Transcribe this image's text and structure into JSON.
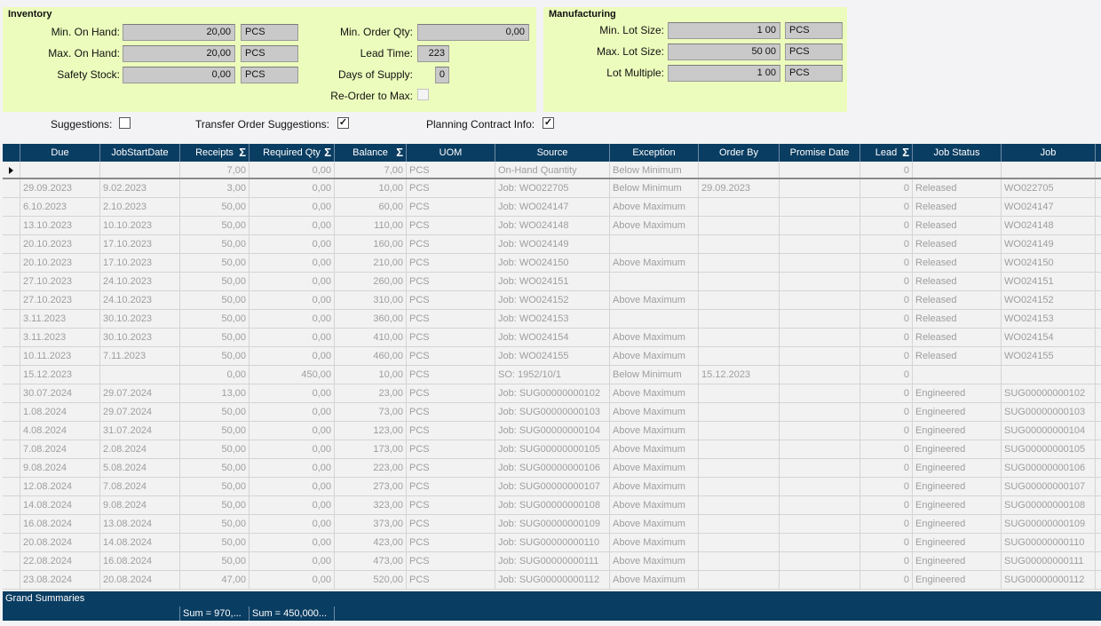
{
  "inventory": {
    "title": "Inventory",
    "min_on_hand": {
      "label": "Min. On Hand:",
      "value": "20,00",
      "uom": "PCS"
    },
    "max_on_hand": {
      "label": "Max. On Hand:",
      "value": "20,00",
      "uom": "PCS"
    },
    "safety_stock": {
      "label": "Safety Stock:",
      "value": "0,00",
      "uom": "PCS"
    },
    "min_order_qty": {
      "label": "Min. Order Qty:",
      "value": "0,00"
    },
    "lead_time": {
      "label": "Lead Time:",
      "value": "223"
    },
    "days_of_supply": {
      "label": "Days of Supply:",
      "value": "0"
    },
    "reorder_to_max": {
      "label": "Re-Order to Max:",
      "checked": false
    }
  },
  "manufacturing": {
    "title": "Manufacturing",
    "min_lot_size": {
      "label": "Min. Lot Size:",
      "value": "1 00",
      "uom": "PCS"
    },
    "max_lot_size": {
      "label": "Max. Lot Size:",
      "value": "50 00",
      "uom": "PCS"
    },
    "lot_multiple": {
      "label": "Lot Multiple:",
      "value": "1 00",
      "uom": "PCS"
    }
  },
  "options": {
    "suggestions": {
      "label": "Suggestions:",
      "checked": false,
      "mark": ""
    },
    "transfer_order": {
      "label": "Transfer Order Suggestions:",
      "checked": true,
      "mark": "✓"
    },
    "planning_contract": {
      "label": "Planning Contract Info:",
      "checked": true,
      "mark": "✓"
    }
  },
  "grid": {
    "columns": [
      "Due",
      "JobStartDate",
      "Receipts",
      "Required Qty",
      "Balance",
      "UOM",
      "Source",
      "Exception",
      "Order By",
      "Promise Date",
      "Lead",
      "Job Status",
      "Job"
    ],
    "rows": [
      [
        "",
        "",
        "7,00",
        "0,00",
        "7,00",
        "PCS",
        "On-Hand Quantity",
        "Below Minimum",
        "",
        "",
        "0",
        "",
        ""
      ],
      [
        "29.09.2023",
        "9.02.2023",
        "3,00",
        "0,00",
        "10,00",
        "PCS",
        "Job: WO022705",
        "Below Minimum",
        "29.09.2023",
        "",
        "0",
        "Released",
        "WO022705"
      ],
      [
        "6.10.2023",
        "2.10.2023",
        "50,00",
        "0,00",
        "60,00",
        "PCS",
        "Job: WO024147",
        "Above Maximum",
        "",
        "",
        "0",
        "Released",
        "WO024147"
      ],
      [
        "13.10.2023",
        "10.10.2023",
        "50,00",
        "0,00",
        "110,00",
        "PCS",
        "Job: WO024148",
        "Above Maximum",
        "",
        "",
        "0",
        "Released",
        "WO024148"
      ],
      [
        "20.10.2023",
        "17.10.2023",
        "50,00",
        "0,00",
        "160,00",
        "PCS",
        "Job: WO024149",
        "",
        "",
        "",
        "0",
        "Released",
        "WO024149"
      ],
      [
        "20.10.2023",
        "17.10.2023",
        "50,00",
        "0,00",
        "210,00",
        "PCS",
        "Job: WO024150",
        "Above Maximum",
        "",
        "",
        "0",
        "Released",
        "WO024150"
      ],
      [
        "27.10.2023",
        "24.10.2023",
        "50,00",
        "0,00",
        "260,00",
        "PCS",
        "Job: WO024151",
        "",
        "",
        "",
        "0",
        "Released",
        "WO024151"
      ],
      [
        "27.10.2023",
        "24.10.2023",
        "50,00",
        "0,00",
        "310,00",
        "PCS",
        "Job: WO024152",
        "Above Maximum",
        "",
        "",
        "0",
        "Released",
        "WO024152"
      ],
      [
        "3.11.2023",
        "30.10.2023",
        "50,00",
        "0,00",
        "360,00",
        "PCS",
        "Job: WO024153",
        "",
        "",
        "",
        "0",
        "Released",
        "WO024153"
      ],
      [
        "3.11.2023",
        "30.10.2023",
        "50,00",
        "0,00",
        "410,00",
        "PCS",
        "Job: WO024154",
        "Above Maximum",
        "",
        "",
        "0",
        "Released",
        "WO024154"
      ],
      [
        "10.11.2023",
        "7.11.2023",
        "50,00",
        "0,00",
        "460,00",
        "PCS",
        "Job: WO024155",
        "Above Maximum",
        "",
        "",
        "0",
        "Released",
        "WO024155"
      ],
      [
        "15.12.2023",
        "",
        "0,00",
        "450,00",
        "10,00",
        "PCS",
        "SO: 1952/10/1",
        "Below Minimum",
        "15.12.2023",
        "",
        "0",
        "",
        ""
      ],
      [
        "30.07.2024",
        "29.07.2024",
        "13,00",
        "0,00",
        "23,00",
        "PCS",
        "Job: SUG00000000102",
        "Above Maximum",
        "",
        "",
        "0",
        "Engineered",
        "SUG00000000102"
      ],
      [
        "1.08.2024",
        "29.07.2024",
        "50,00",
        "0,00",
        "73,00",
        "PCS",
        "Job: SUG00000000103",
        "Above Maximum",
        "",
        "",
        "0",
        "Engineered",
        "SUG00000000103"
      ],
      [
        "4.08.2024",
        "31.07.2024",
        "50,00",
        "0,00",
        "123,00",
        "PCS",
        "Job: SUG00000000104",
        "Above Maximum",
        "",
        "",
        "0",
        "Engineered",
        "SUG00000000104"
      ],
      [
        "7.08.2024",
        "2.08.2024",
        "50,00",
        "0,00",
        "173,00",
        "PCS",
        "Job: SUG00000000105",
        "Above Maximum",
        "",
        "",
        "0",
        "Engineered",
        "SUG00000000105"
      ],
      [
        "9.08.2024",
        "5.08.2024",
        "50,00",
        "0,00",
        "223,00",
        "PCS",
        "Job: SUG00000000106",
        "Above Maximum",
        "",
        "",
        "0",
        "Engineered",
        "SUG00000000106"
      ],
      [
        "12.08.2024",
        "7.08.2024",
        "50,00",
        "0,00",
        "273,00",
        "PCS",
        "Job: SUG00000000107",
        "Above Maximum",
        "",
        "",
        "0",
        "Engineered",
        "SUG00000000107"
      ],
      [
        "14.08.2024",
        "9.08.2024",
        "50,00",
        "0,00",
        "323,00",
        "PCS",
        "Job: SUG00000000108",
        "Above Maximum",
        "",
        "",
        "0",
        "Engineered",
        "SUG00000000108"
      ],
      [
        "16.08.2024",
        "13.08.2024",
        "50,00",
        "0,00",
        "373,00",
        "PCS",
        "Job: SUG00000000109",
        "Above Maximum",
        "",
        "",
        "0",
        "Engineered",
        "SUG00000000109"
      ],
      [
        "20.08.2024",
        "14.08.2024",
        "50,00",
        "0,00",
        "423,00",
        "PCS",
        "Job: SUG00000000110",
        "Above Maximum",
        "",
        "",
        "0",
        "Engineered",
        "SUG00000000110"
      ],
      [
        "22.08.2024",
        "16.08.2024",
        "50,00",
        "0,00",
        "473,00",
        "PCS",
        "Job: SUG00000000111",
        "Above Maximum",
        "",
        "",
        "0",
        "Engineered",
        "SUG00000000111"
      ],
      [
        "23.08.2024",
        "20.08.2024",
        "47,00",
        "0,00",
        "520,00",
        "PCS",
        "Job: SUG00000000112",
        "Above Maximum",
        "",
        "",
        "0",
        "Engineered",
        "SUG00000000112"
      ]
    ],
    "summary_title": "Grand Summaries",
    "sum_receipts": "Sum = 970,...",
    "sum_required": "Sum = 450,000..."
  }
}
